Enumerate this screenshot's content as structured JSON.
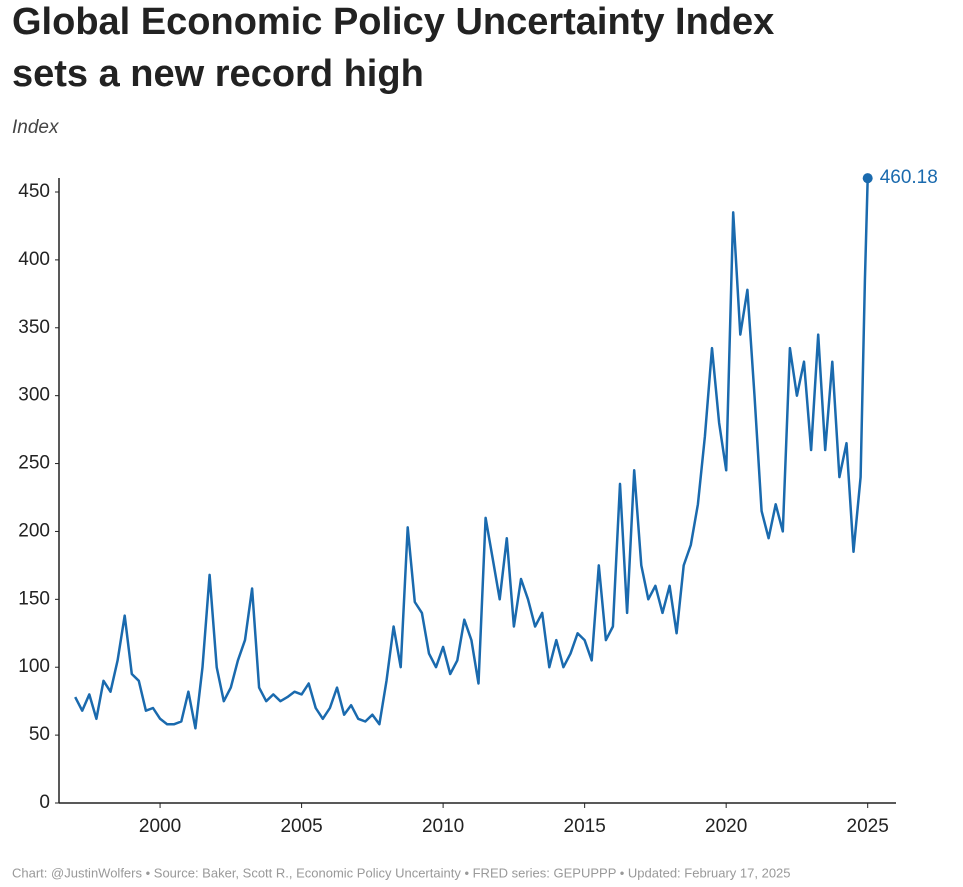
{
  "chart_data": {
    "type": "line",
    "title": "Global Economic Policy Uncertainty Index sets a new record high",
    "subtitle": "Index",
    "source": "Chart: @JustinWolfers • Source: Baker, Scott R., Economic Policy Uncertainty • FRED series: GEPUPPP • Updated: February 17, 2025",
    "x": [
      1997,
      1997.25,
      1997.5,
      1997.75,
      1998,
      1998.25,
      1998.5,
      1998.75,
      1999,
      1999.25,
      1999.5,
      1999.75,
      2000,
      2000.25,
      2000.5,
      2000.75,
      2001,
      2001.25,
      2001.5,
      2001.75,
      2002,
      2002.25,
      2002.5,
      2002.75,
      2003,
      2003.25,
      2003.5,
      2003.75,
      2004,
      2004.25,
      2004.5,
      2004.75,
      2005,
      2005.25,
      2005.5,
      2005.75,
      2006,
      2006.25,
      2006.5,
      2006.75,
      2007,
      2007.25,
      2007.5,
      2007.75,
      2008,
      2008.25,
      2008.5,
      2008.75,
      2009,
      2009.25,
      2009.5,
      2009.75,
      2010,
      2010.25,
      2010.5,
      2010.75,
      2011,
      2011.25,
      2011.5,
      2011.75,
      2012,
      2012.25,
      2012.5,
      2012.75,
      2013,
      2013.25,
      2013.5,
      2013.75,
      2014,
      2014.25,
      2014.5,
      2014.75,
      2015,
      2015.25,
      2015.5,
      2015.75,
      2016,
      2016.25,
      2016.5,
      2016.75,
      2017,
      2017.25,
      2017.5,
      2017.75,
      2018,
      2018.25,
      2018.5,
      2018.75,
      2019,
      2019.25,
      2019.5,
      2019.75,
      2020,
      2020.25,
      2020.5,
      2020.75,
      2021,
      2021.25,
      2021.5,
      2021.75,
      2022,
      2022.25,
      2022.5,
      2022.75,
      2023,
      2023.25,
      2023.5,
      2023.75,
      2024,
      2024.25,
      2024.5,
      2024.75,
      2024.9,
      2025
    ],
    "series": [
      {
        "name": "Global Economic Policy Uncertainty Index",
        "color": "#1a6aae",
        "values": [
          78,
          68,
          80,
          62,
          90,
          82,
          105,
          138,
          95,
          90,
          68,
          70,
          62,
          58,
          58,
          60,
          82,
          55,
          100,
          168,
          100,
          75,
          85,
          105,
          120,
          158,
          85,
          75,
          80,
          75,
          78,
          82,
          80,
          88,
          70,
          62,
          70,
          85,
          65,
          72,
          62,
          60,
          65,
          58,
          90,
          130,
          100,
          203,
          148,
          140,
          110,
          100,
          115,
          95,
          105,
          135,
          120,
          88,
          210,
          180,
          150,
          195,
          130,
          165,
          150,
          130,
          140,
          100,
          120,
          100,
          110,
          125,
          120,
          105,
          175,
          120,
          130,
          235,
          140,
          245,
          175,
          150,
          160,
          140,
          160,
          125,
          175,
          190,
          220,
          270,
          335,
          280,
          245,
          435,
          345,
          378,
          300,
          215,
          195,
          220,
          200,
          335,
          300,
          325,
          260,
          345,
          260,
          325,
          240,
          265,
          185,
          240,
          385,
          460.18
        ]
      }
    ],
    "xlim": [
      1996.5,
      2026
    ],
    "xticks": [
      2000,
      2005,
      2010,
      2015,
      2020,
      2025
    ],
    "ylim": [
      0,
      450
    ],
    "yticks": [
      0,
      50,
      100,
      150,
      200,
      250,
      300,
      350,
      400,
      450
    ]
  }
}
